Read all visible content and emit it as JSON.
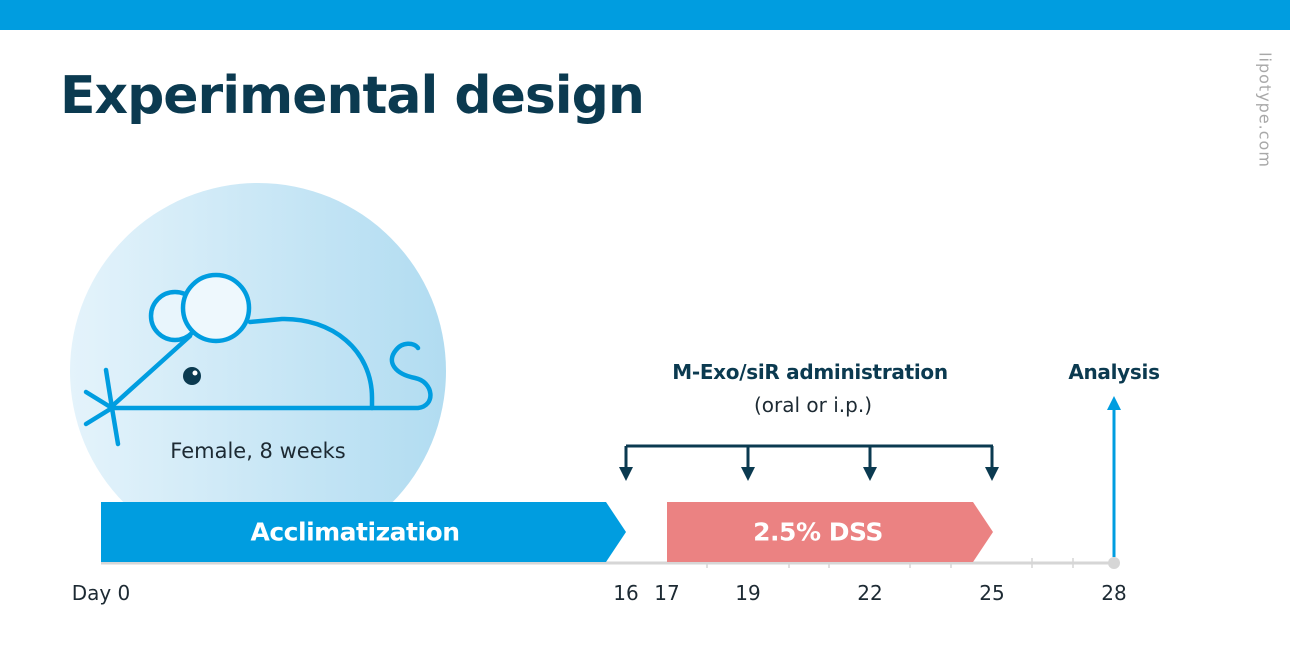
{
  "title": "Experimental design",
  "watermark": "lipotype.com",
  "mouse": {
    "caption": "Female, 8 weeks"
  },
  "phases": [
    {
      "label": "Acclimatization",
      "start_day": 0,
      "end_day": 16,
      "color": "#009de0"
    },
    {
      "label": "2.5% DSS",
      "start_day": 17,
      "end_day": 25,
      "color": "#eb8282"
    }
  ],
  "administration": {
    "title": "M-Exo/siR administration",
    "subtitle": "(oral or i.p.)",
    "days": [
      16,
      19,
      22,
      25
    ]
  },
  "analysis": {
    "label": "Analysis",
    "day": 28
  },
  "timeline": {
    "ticks": [
      "Day 0",
      "16",
      "17",
      "19",
      "22",
      "25",
      "28"
    ]
  },
  "colors": {
    "brand_blue": "#009de0",
    "title_navy": "#0b3a50",
    "dss_pink": "#eb8282",
    "axis_gray": "#d6d6d6",
    "circle_light": "#def0fa",
    "circle_mid": "#b4def2"
  }
}
